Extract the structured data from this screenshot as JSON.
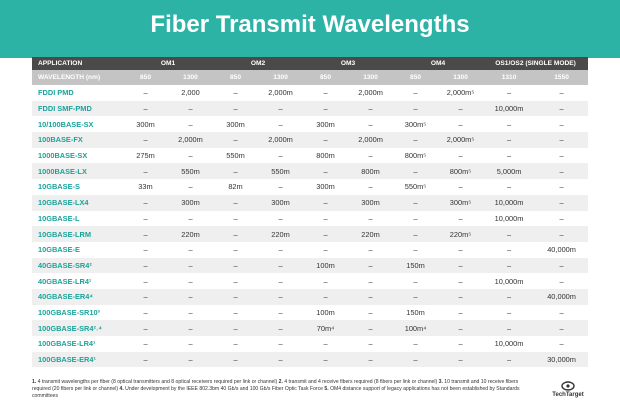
{
  "title": "Fiber Transmit Wavelengths",
  "table": {
    "groups": [
      "APPLICATION",
      "OM1",
      "OM2",
      "OM3",
      "OM4",
      "OS1/OS2 (SINGLE MODE)"
    ],
    "subheader": [
      "WAVELENGTH (nm)",
      "850",
      "1300",
      "850",
      "1300",
      "850",
      "1300",
      "850",
      "1300",
      "1310",
      "1550"
    ],
    "rows": [
      [
        "FDDI PMD",
        "–",
        "2,000",
        "–",
        "2,000m",
        "–",
        "2,000m",
        "–",
        "2,000m⁵",
        "–",
        "–"
      ],
      [
        "FDDI SMF-PMD",
        "–",
        "–",
        "–",
        "–",
        "–",
        "–",
        "–",
        "–",
        "10,000m",
        "–"
      ],
      [
        "10/100BASE-SX",
        "300m",
        "–",
        "300m",
        "–",
        "300m",
        "–",
        "300m⁵",
        "–",
        "–",
        "–"
      ],
      [
        "100BASE-FX",
        "–",
        "2,000m",
        "–",
        "2,000m",
        "–",
        "2,000m",
        "–",
        "2,000m⁵",
        "–",
        "–"
      ],
      [
        "1000BASE-SX",
        "275m",
        "–",
        "550m",
        "–",
        "800m",
        "–",
        "800m⁵",
        "–",
        "–",
        "–"
      ],
      [
        "1000BASE-LX",
        "–",
        "550m",
        "–",
        "550m",
        "–",
        "800m",
        "–",
        "800m⁵",
        "5,000m",
        "–"
      ],
      [
        "10GBASE-S",
        "33m",
        "–",
        "82m",
        "–",
        "300m",
        "–",
        "550m⁵",
        "–",
        "–",
        "–"
      ],
      [
        "10GBASE-LX4",
        "–",
        "300m",
        "–",
        "300m",
        "–",
        "300m",
        "–",
        "300m⁵",
        "10,000m",
        "–"
      ],
      [
        "10GBASE-L",
        "–",
        "–",
        "–",
        "–",
        "–",
        "–",
        "–",
        "–",
        "10,000m",
        "–"
      ],
      [
        "10GBASE-LRM",
        "–",
        "220m",
        "–",
        "220m",
        "–",
        "220m",
        "–",
        "220m⁵",
        "–",
        "–"
      ],
      [
        "10GBASE-E",
        "–",
        "–",
        "–",
        "–",
        "–",
        "–",
        "–",
        "–",
        "–",
        "40,000m"
      ],
      [
        "40GBASE-SR4²",
        "–",
        "–",
        "–",
        "–",
        "100m",
        "–",
        "150m",
        "–",
        "–",
        "–"
      ],
      [
        "40GBASE-LR4¹",
        "–",
        "–",
        "–",
        "–",
        "–",
        "–",
        "–",
        "–",
        "10,000m",
        "–"
      ],
      [
        "40GBASE-ER4⁴",
        "–",
        "–",
        "–",
        "–",
        "–",
        "–",
        "–",
        "–",
        "–",
        "40,000m"
      ],
      [
        "100GBASE-SR10³",
        "–",
        "–",
        "–",
        "–",
        "100m",
        "–",
        "150m",
        "–",
        "–",
        "–"
      ],
      [
        "100GBASE-SR4²˒⁴",
        "–",
        "–",
        "–",
        "–",
        "70m⁴",
        "–",
        "100m⁴",
        "–",
        "–",
        "–"
      ],
      [
        "100GBASE-LR4¹",
        "–",
        "–",
        "–",
        "–",
        "–",
        "–",
        "–",
        "–",
        "10,000m",
        "–"
      ],
      [
        "100GBASE-ER4¹",
        "–",
        "–",
        "–",
        "–",
        "–",
        "–",
        "–",
        "–",
        "–",
        "30,000m"
      ]
    ]
  },
  "notes": [
    {
      "n": "1.",
      "text": "4 transmit wavelengths per fiber (8 optical transmitters and 8 optical receivers required per link or channel)"
    },
    {
      "n": "2.",
      "text": "4 transmit and 4 receive fibers required (8 fibers per link or channel)"
    },
    {
      "n": "3.",
      "text": "10 transmit and 10 receive fibers required (20 fibers per link or channel)"
    },
    {
      "n": "4.",
      "text": "Under development by the IEEE 802.3bm 40 Gb/s and 100 Gb/s Fiber Optic Task Force"
    },
    {
      "n": "5.",
      "text": "OM4 distance support of legacy applications has not been established by Standards committees"
    }
  ],
  "logo": "TechTarget"
}
